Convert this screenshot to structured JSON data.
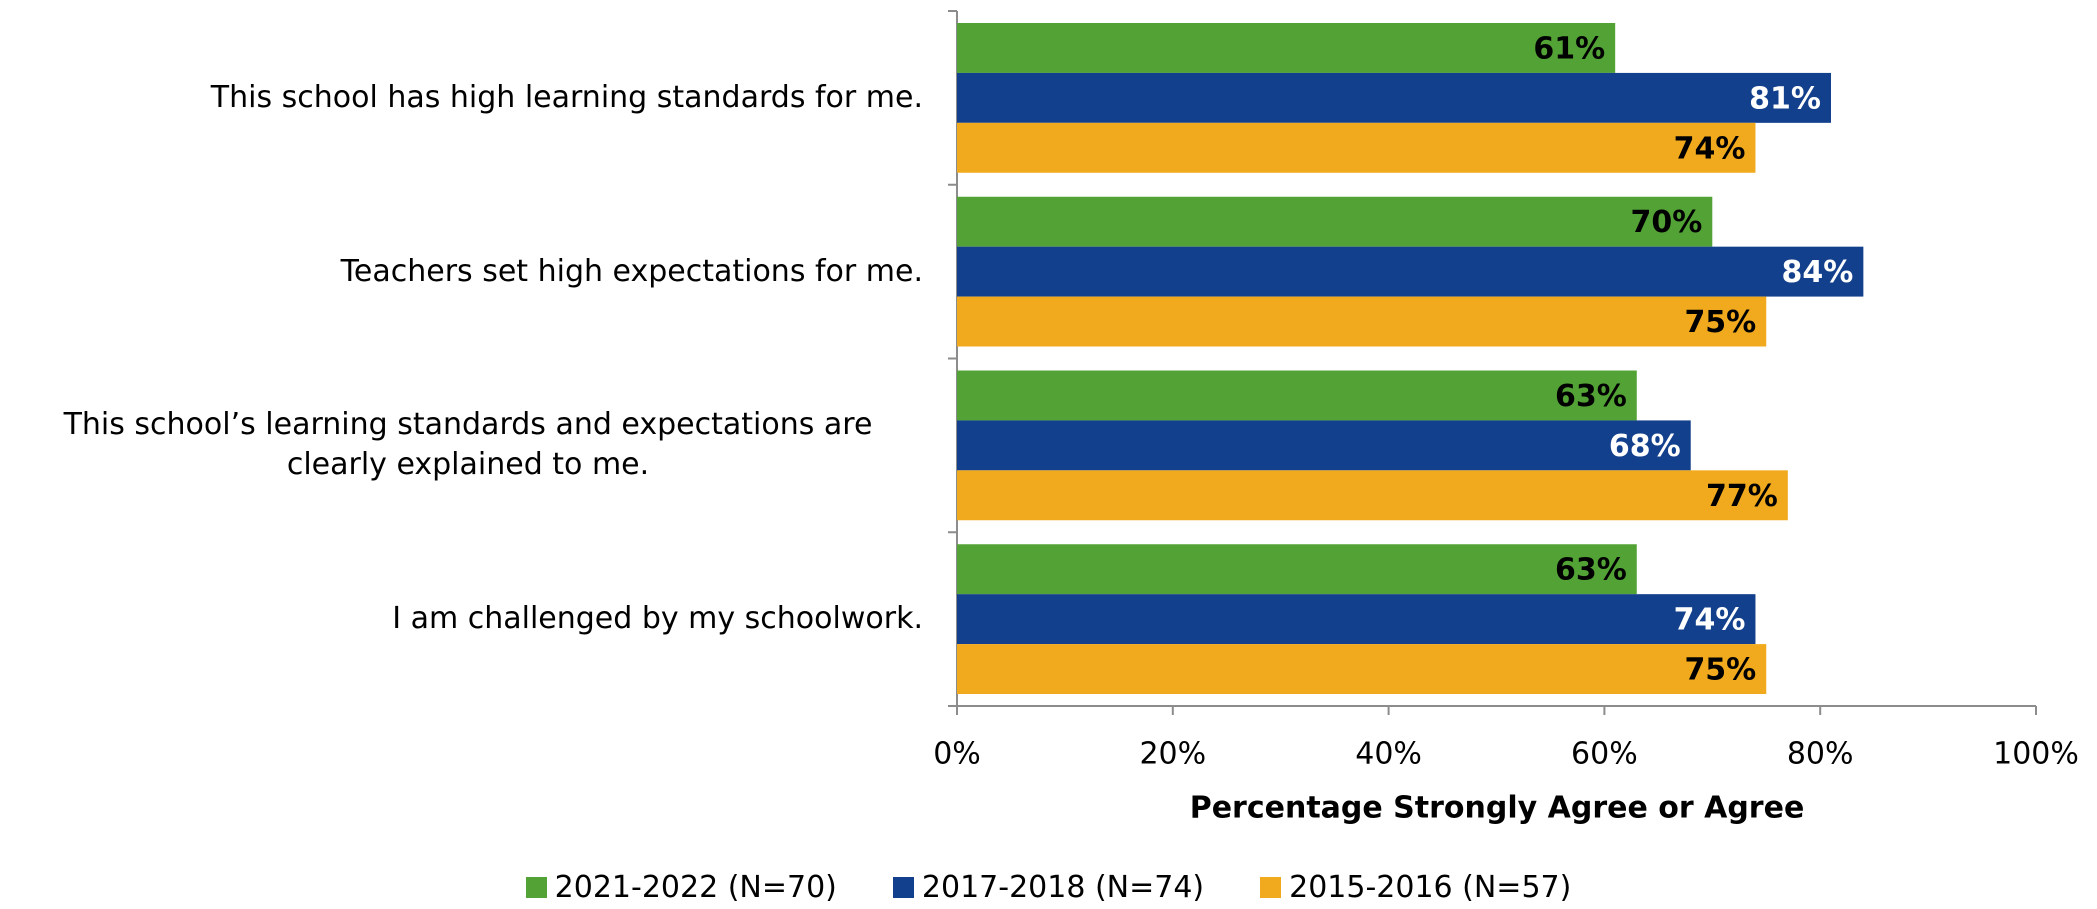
{
  "chart_data": {
    "type": "bar",
    "orientation": "horizontal",
    "x_label": "Percentage Strongly Agree or Agree",
    "categories": [
      "This school has high learning standards for me.",
      "Teachers set high expectations for me.",
      "This school’s learning standards and expectations are clearly explained to me.",
      "I am challenged by my schoolwork."
    ],
    "series": [
      {
        "name": "2021-2022 (N=70)",
        "color": "#52a235",
        "label_color": "#000000",
        "values": [
          61,
          70,
          63,
          63
        ],
        "value_labels": [
          "61%",
          "70%",
          "63%",
          "63%"
        ]
      },
      {
        "name": "2017-2018 (N=74)",
        "color": "#13408c",
        "label_color": "#ffffff",
        "values": [
          81,
          84,
          68,
          74
        ],
        "value_labels": [
          "81%",
          "84%",
          "68%",
          "74%"
        ]
      },
      {
        "name": "2015-2016 (N=57)",
        "color": "#f1aa1e",
        "label_color": "#000000",
        "values": [
          74,
          75,
          77,
          75
        ],
        "value_labels": [
          "74%",
          "75%",
          "77%",
          "75%"
        ]
      }
    ],
    "xlim": [
      0,
      100
    ],
    "xticks": [
      {
        "value": 0,
        "label": "0%"
      },
      {
        "value": 20,
        "label": "20%"
      },
      {
        "value": 40,
        "label": "40%"
      },
      {
        "value": 60,
        "label": "60%"
      },
      {
        "value": 80,
        "label": "80%"
      },
      {
        "value": 100,
        "label": "100%"
      }
    ],
    "grid": false,
    "legend": "bottom"
  }
}
